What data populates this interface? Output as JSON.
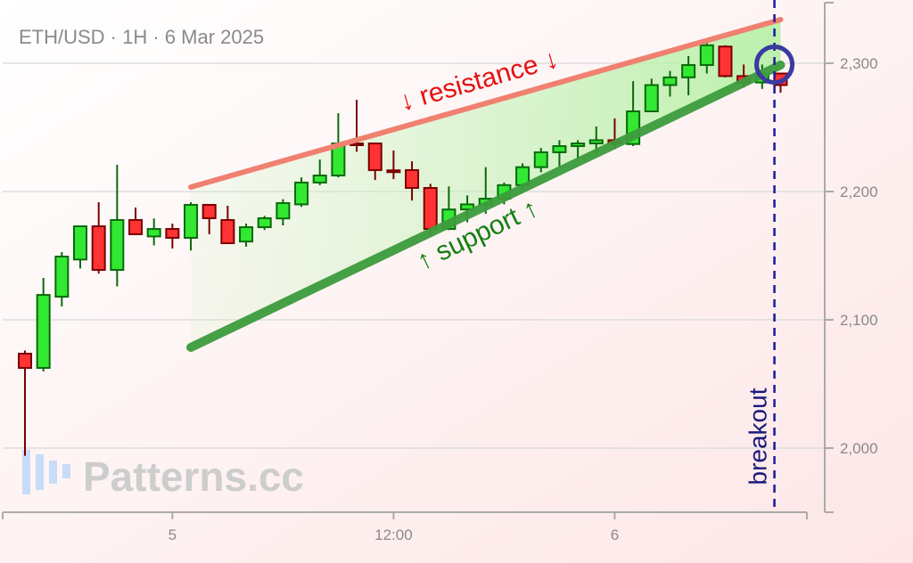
{
  "chart_data": {
    "type": "candlestick",
    "title": "ETH/USD · 1H · 6 Mar 2025",
    "watermark": "Patterns.cc",
    "ylim": [
      1950,
      2349
    ],
    "yticks": [
      2000,
      2100,
      2200,
      2300
    ],
    "ytick_labels": [
      "2,000",
      "2,100",
      "2,200",
      "2,300"
    ],
    "xlim": [
      "2025-03-04 15:00",
      "2025-03-06 10:30"
    ],
    "xticks": [
      {
        "t": "2025-03-05 00:00",
        "label": "5"
      },
      {
        "t": "2025-03-05 12:00",
        "label": "12:00"
      },
      {
        "t": "2025-03-06 00:00",
        "label": "6"
      }
    ],
    "grid": "horizontal",
    "colors": {
      "up": "#33e833",
      "up_edge": "#0a6a0a",
      "down": "#ff3333",
      "down_edge": "#7a0000",
      "resistance": "#f08070",
      "support": "#3d9c3d",
      "channel_fill": "#c8f5bf",
      "breakout": "#1a1a9c",
      "circle": "#3a3aa0"
    },
    "start": "2025-03-04 16:00",
    "interval_hours": 1,
    "candles": [
      [
        2073.6,
        2076,
        1994,
        2062.5
      ],
      [
        2062.5,
        2132.6,
        2059.7,
        2119.4
      ],
      [
        2118,
        2152.8,
        2110.4,
        2149.3
      ],
      [
        2147,
        2173.6,
        2140,
        2172.9
      ],
      [
        2172.9,
        2191.7,
        2136,
        2138.9
      ],
      [
        2138.9,
        2220.8,
        2126,
        2177.8
      ],
      [
        2177.8,
        2187.5,
        2166,
        2166.7
      ],
      [
        2165,
        2179,
        2158,
        2170.8
      ],
      [
        2170.8,
        2175,
        2155.6,
        2163.9
      ],
      [
        2163.9,
        2191.7,
        2154,
        2189.6
      ],
      [
        2189.6,
        2190,
        2166.7,
        2179.2
      ],
      [
        2177.8,
        2188.9,
        2159,
        2159.7
      ],
      [
        2161,
        2175,
        2157,
        2172.2
      ],
      [
        2172.2,
        2181,
        2170,
        2179.2
      ],
      [
        2179,
        2194,
        2173.6,
        2191
      ],
      [
        2190,
        2211,
        2188,
        2207
      ],
      [
        2207,
        2225,
        2205,
        2212.5
      ],
      [
        2212.5,
        2261,
        2211,
        2237.5
      ],
      [
        2237.5,
        2271.5,
        2231,
        2236.5
      ],
      [
        2237.5,
        2238,
        2209,
        2216.7
      ],
      [
        2216.5,
        2232,
        2209.7,
        2215.5
      ],
      [
        2216.7,
        2223.6,
        2193,
        2202.8
      ],
      [
        2202.8,
        2206,
        2166,
        2170.8
      ],
      [
        2170.8,
        2204,
        2170,
        2186
      ],
      [
        2186,
        2197,
        2176,
        2190
      ],
      [
        2190,
        2219,
        2182.6,
        2194.4
      ],
      [
        2194.4,
        2207,
        2190,
        2205
      ],
      [
        2205,
        2222,
        2201,
        2219
      ],
      [
        2219,
        2234,
        2215,
        2230.6
      ],
      [
        2230.6,
        2240,
        2219,
        2235.4
      ],
      [
        2235.4,
        2240,
        2226,
        2237.5
      ],
      [
        2237.5,
        2250.7,
        2229,
        2240
      ],
      [
        2240,
        2257,
        2233,
        2237.5
      ],
      [
        2237,
        2286,
        2235.4,
        2262.5
      ],
      [
        2262.5,
        2288,
        2262,
        2283
      ],
      [
        2283,
        2294,
        2274,
        2289
      ],
      [
        2289,
        2305.6,
        2275,
        2298.6
      ],
      [
        2298.6,
        2318,
        2292,
        2314
      ],
      [
        2313,
        2314,
        2289,
        2290
      ],
      [
        2290,
        2299,
        2281,
        2285
      ],
      [
        2285,
        2299,
        2280,
        2292
      ],
      [
        2292,
        2292,
        2277,
        2283
      ]
    ],
    "candle_fields": [
      "open",
      "high",
      "low",
      "close"
    ],
    "resistance": {
      "label": "↓ resistance ↓",
      "from": [
        "2025-03-05 01:00",
        2203.5
      ],
      "to": [
        "2025-03-06 09:00",
        2334
      ]
    },
    "support": {
      "label": "↑ support ↑",
      "from": [
        "2025-03-05 01:00",
        2078.5
      ],
      "to": [
        "2025-03-06 09:00",
        2298.6
      ]
    },
    "breakout": {
      "label": "breakout",
      "t": "2025-03-06 08:40"
    },
    "highlight_circle": {
      "t": "2025-03-06 08:40",
      "price": 2299
    }
  }
}
